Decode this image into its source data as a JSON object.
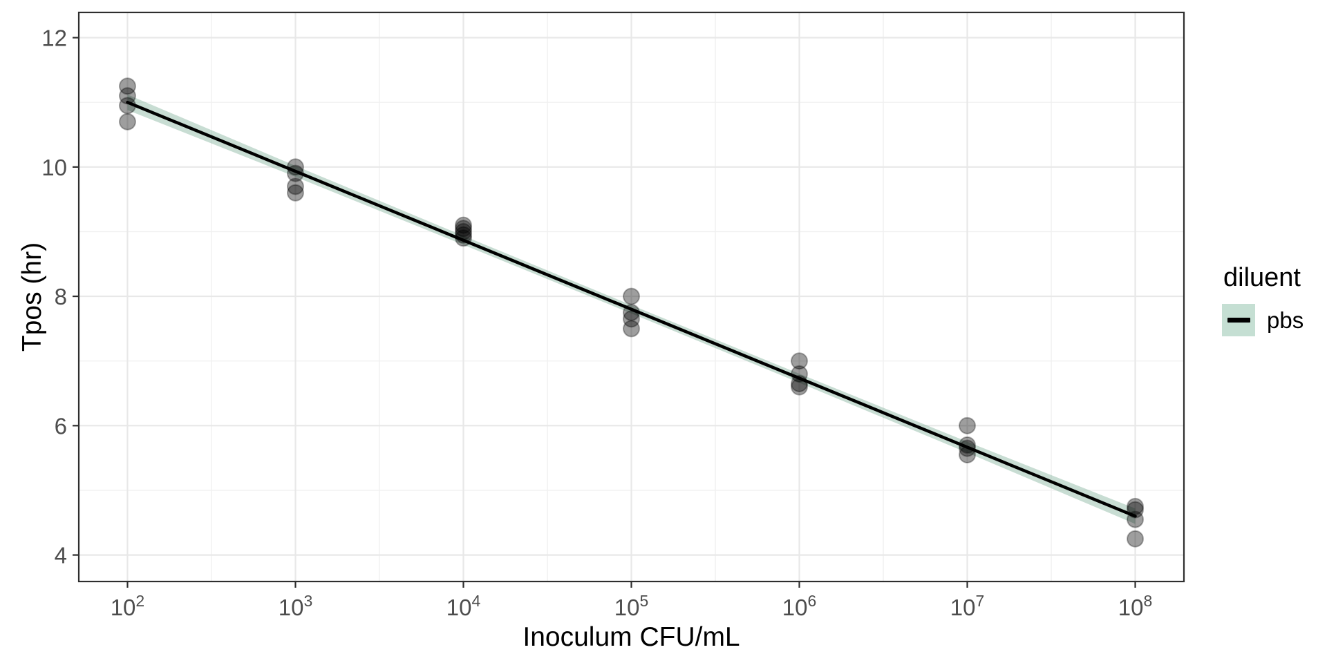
{
  "page": {
    "background": "#ffffff"
  },
  "chart_data": {
    "type": "scatter",
    "title": "",
    "xlabel": "Inoculum CFU/mL",
    "ylabel": "Tpos (hr)",
    "x_scale": "log10",
    "x_tick_base": "10",
    "x_ticks_exponents": [
      2,
      3,
      4,
      5,
      6,
      7,
      8
    ],
    "x_minor_log10": [
      2.5,
      3.5,
      4.5,
      5.5,
      6.5,
      7.5
    ],
    "x_domain_log10": [
      1.71,
      8.29
    ],
    "y_ticks": [
      4,
      6,
      8,
      10,
      12
    ],
    "y_minor": [
      5,
      7,
      9,
      11
    ],
    "y_domain": [
      3.59,
      12.39
    ],
    "grid": true,
    "legend": {
      "title": "diluent",
      "position": "right",
      "items": [
        {
          "label": "pbs",
          "swatch_fill": "#c5dfd3",
          "line_color": "#000000"
        }
      ]
    },
    "series": [
      {
        "name": "pbs",
        "points_log10x_y": [
          [
            2,
            11.25
          ],
          [
            2,
            11.1
          ],
          [
            2,
            10.95
          ],
          [
            2,
            10.7
          ],
          [
            3,
            10.0
          ],
          [
            3,
            9.9
          ],
          [
            3,
            9.7
          ],
          [
            3,
            9.6
          ],
          [
            4,
            9.1
          ],
          [
            4,
            9.05
          ],
          [
            4,
            9.0
          ],
          [
            4,
            8.95
          ],
          [
            4,
            8.9
          ],
          [
            5,
            8.0
          ],
          [
            5,
            7.75
          ],
          [
            5,
            7.65
          ],
          [
            5,
            7.5
          ],
          [
            6,
            7.0
          ],
          [
            6,
            6.8
          ],
          [
            6,
            6.65
          ],
          [
            6,
            6.6
          ],
          [
            7,
            6.0
          ],
          [
            7,
            5.7
          ],
          [
            7,
            5.65
          ],
          [
            7,
            5.55
          ],
          [
            8,
            4.75
          ],
          [
            8,
            4.7
          ],
          [
            8,
            4.55
          ],
          [
            8,
            4.25
          ]
        ]
      }
    ],
    "smooth": {
      "line_endpoints_log10x_y": [
        [
          2,
          11.0
        ],
        [
          8,
          4.6
        ]
      ],
      "ribbon_x_log10": [
        2,
        3,
        4,
        5,
        6,
        7,
        8
      ],
      "ribbon_halfwidth": [
        0.12,
        0.085,
        0.07,
        0.065,
        0.07,
        0.085,
        0.12
      ],
      "line_color": "#000000",
      "ribbon_color": "rgba(133,180,158,0.45)"
    },
    "style": {
      "point_fill": "rgba(0,0,0,0.38)",
      "point_stroke": "rgba(0,0,0,0.30)",
      "point_radius": 11.5,
      "grid_major_color": "#e8e8e8",
      "grid_minor_color": "#f0f0f0",
      "panel_border_color": "#2e2e2e",
      "tick_color": "#2e2e2e",
      "tick_label_color": "#4d4d4d",
      "panel_background": "#ffffff"
    }
  }
}
